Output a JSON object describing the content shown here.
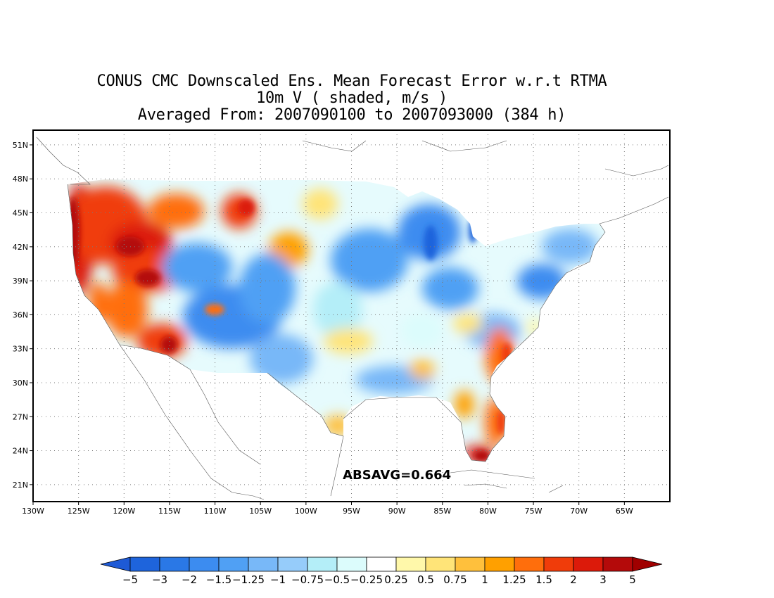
{
  "title": {
    "line1": "CONUS CMC Downscaled Ens. Mean Forecast Error w.r.t RTMA",
    "line2": "10m V ( shaded, m/s )",
    "line3": "Averaged From: 2007090100 to 2007093000 (384 h)"
  },
  "map": {
    "lon_range": [
      -130,
      -60
    ],
    "lat_range": [
      19.5,
      52.3
    ],
    "lon_ticks": [
      {
        "value": -130,
        "label": "130W"
      },
      {
        "value": -125,
        "label": "125W"
      },
      {
        "value": -120,
        "label": "120W"
      },
      {
        "value": -115,
        "label": "115W"
      },
      {
        "value": -110,
        "label": "110W"
      },
      {
        "value": -105,
        "label": "105W"
      },
      {
        "value": -100,
        "label": "100W"
      },
      {
        "value": -95,
        "label": "95W"
      },
      {
        "value": -90,
        "label": "90W"
      },
      {
        "value": -85,
        "label": "85W"
      },
      {
        "value": -80,
        "label": "80W"
      },
      {
        "value": -75,
        "label": "75W"
      },
      {
        "value": -70,
        "label": "70W"
      },
      {
        "value": -65,
        "label": "65W"
      }
    ],
    "lat_ticks": [
      {
        "value": 21,
        "label": "21N"
      },
      {
        "value": 24,
        "label": "24N"
      },
      {
        "value": 27,
        "label": "27N"
      },
      {
        "value": 30,
        "label": "30N"
      },
      {
        "value": 33,
        "label": "33N"
      },
      {
        "value": 36,
        "label": "36N"
      },
      {
        "value": 39,
        "label": "39N"
      },
      {
        "value": 42,
        "label": "42N"
      },
      {
        "value": 45,
        "label": "45N"
      },
      {
        "value": 48,
        "label": "48N"
      },
      {
        "value": 51,
        "label": "51N"
      }
    ],
    "grid": "dotted",
    "absavg_text": "ABSAVG=0.664",
    "absavg_position": {
      "lon": -90,
      "lat": 21.5
    }
  },
  "colorbar": {
    "labels": [
      "−5",
      "−3",
      "−2",
      "−1.5",
      "−1.25",
      "−1",
      "−0.75",
      "−0.5",
      "−0.25",
      "0.25",
      "0.5",
      "0.75",
      "1",
      "1.25",
      "1.5",
      "2",
      "3",
      "5"
    ],
    "low_arrow_color": "#1e5ad6",
    "high_arrow_color": "#a00000",
    "colors": [
      "#1e64dc",
      "#2a78e6",
      "#3c8cf0",
      "#50a0f4",
      "#78b8f8",
      "#96ccfa",
      "#b4eef8",
      "#dcfcfc",
      "#ffffff",
      "#fff8aa",
      "#ffe478",
      "#ffc03c",
      "#ffa000",
      "#ff6e0c",
      "#f03c0a",
      "#dc1a0a",
      "#b40a0a"
    ]
  },
  "chart_data": {
    "type": "heatmap",
    "variable": "10m V",
    "units": "m/s",
    "levels": [
      -5,
      -3,
      -2,
      -1.5,
      -1.25,
      -1,
      -0.75,
      -0.5,
      -0.25,
      0.25,
      0.5,
      0.75,
      1,
      1.25,
      1.5,
      2,
      3,
      5
    ],
    "xlabel": "",
    "ylabel": "",
    "absavg": 0.664,
    "regions": [
      {
        "lon": -122.5,
        "lat": 40.5,
        "value": 3
      },
      {
        "lon": -117.5,
        "lat": 42.5,
        "value": 2
      },
      {
        "lon": -119.5,
        "lat": 44,
        "value": 3
      },
      {
        "lon": -108,
        "lat": 46,
        "value": 2
      },
      {
        "lon": -114,
        "lat": 33.5,
        "value": 2
      },
      {
        "lon": -104.5,
        "lat": 42,
        "value": 0.75
      },
      {
        "lon": -110,
        "lat": 41,
        "value": -1.5
      },
      {
        "lon": -108,
        "lat": 37.5,
        "value": -1.5
      },
      {
        "lon": -104,
        "lat": 40,
        "value": -1.25
      },
      {
        "lon": -93,
        "lat": 41,
        "value": -1.25
      },
      {
        "lon": -87.5,
        "lat": 43.5,
        "value": -1.5
      },
      {
        "lon": -76.5,
        "lat": 39.5,
        "value": -1.25
      },
      {
        "lon": -71,
        "lat": 43,
        "value": -0.5
      },
      {
        "lon": -96,
        "lat": 33.5,
        "value": 0.5
      },
      {
        "lon": -88,
        "lat": 32,
        "value": 0.75
      },
      {
        "lon": -78,
        "lat": 33.5,
        "value": 1.5
      },
      {
        "lon": -80.5,
        "lat": 26.5,
        "value": 1.5
      },
      {
        "lon": -81,
        "lat": 24.5,
        "value": 2
      },
      {
        "lon": -96.5,
        "lat": 27,
        "value": 1
      }
    ]
  }
}
